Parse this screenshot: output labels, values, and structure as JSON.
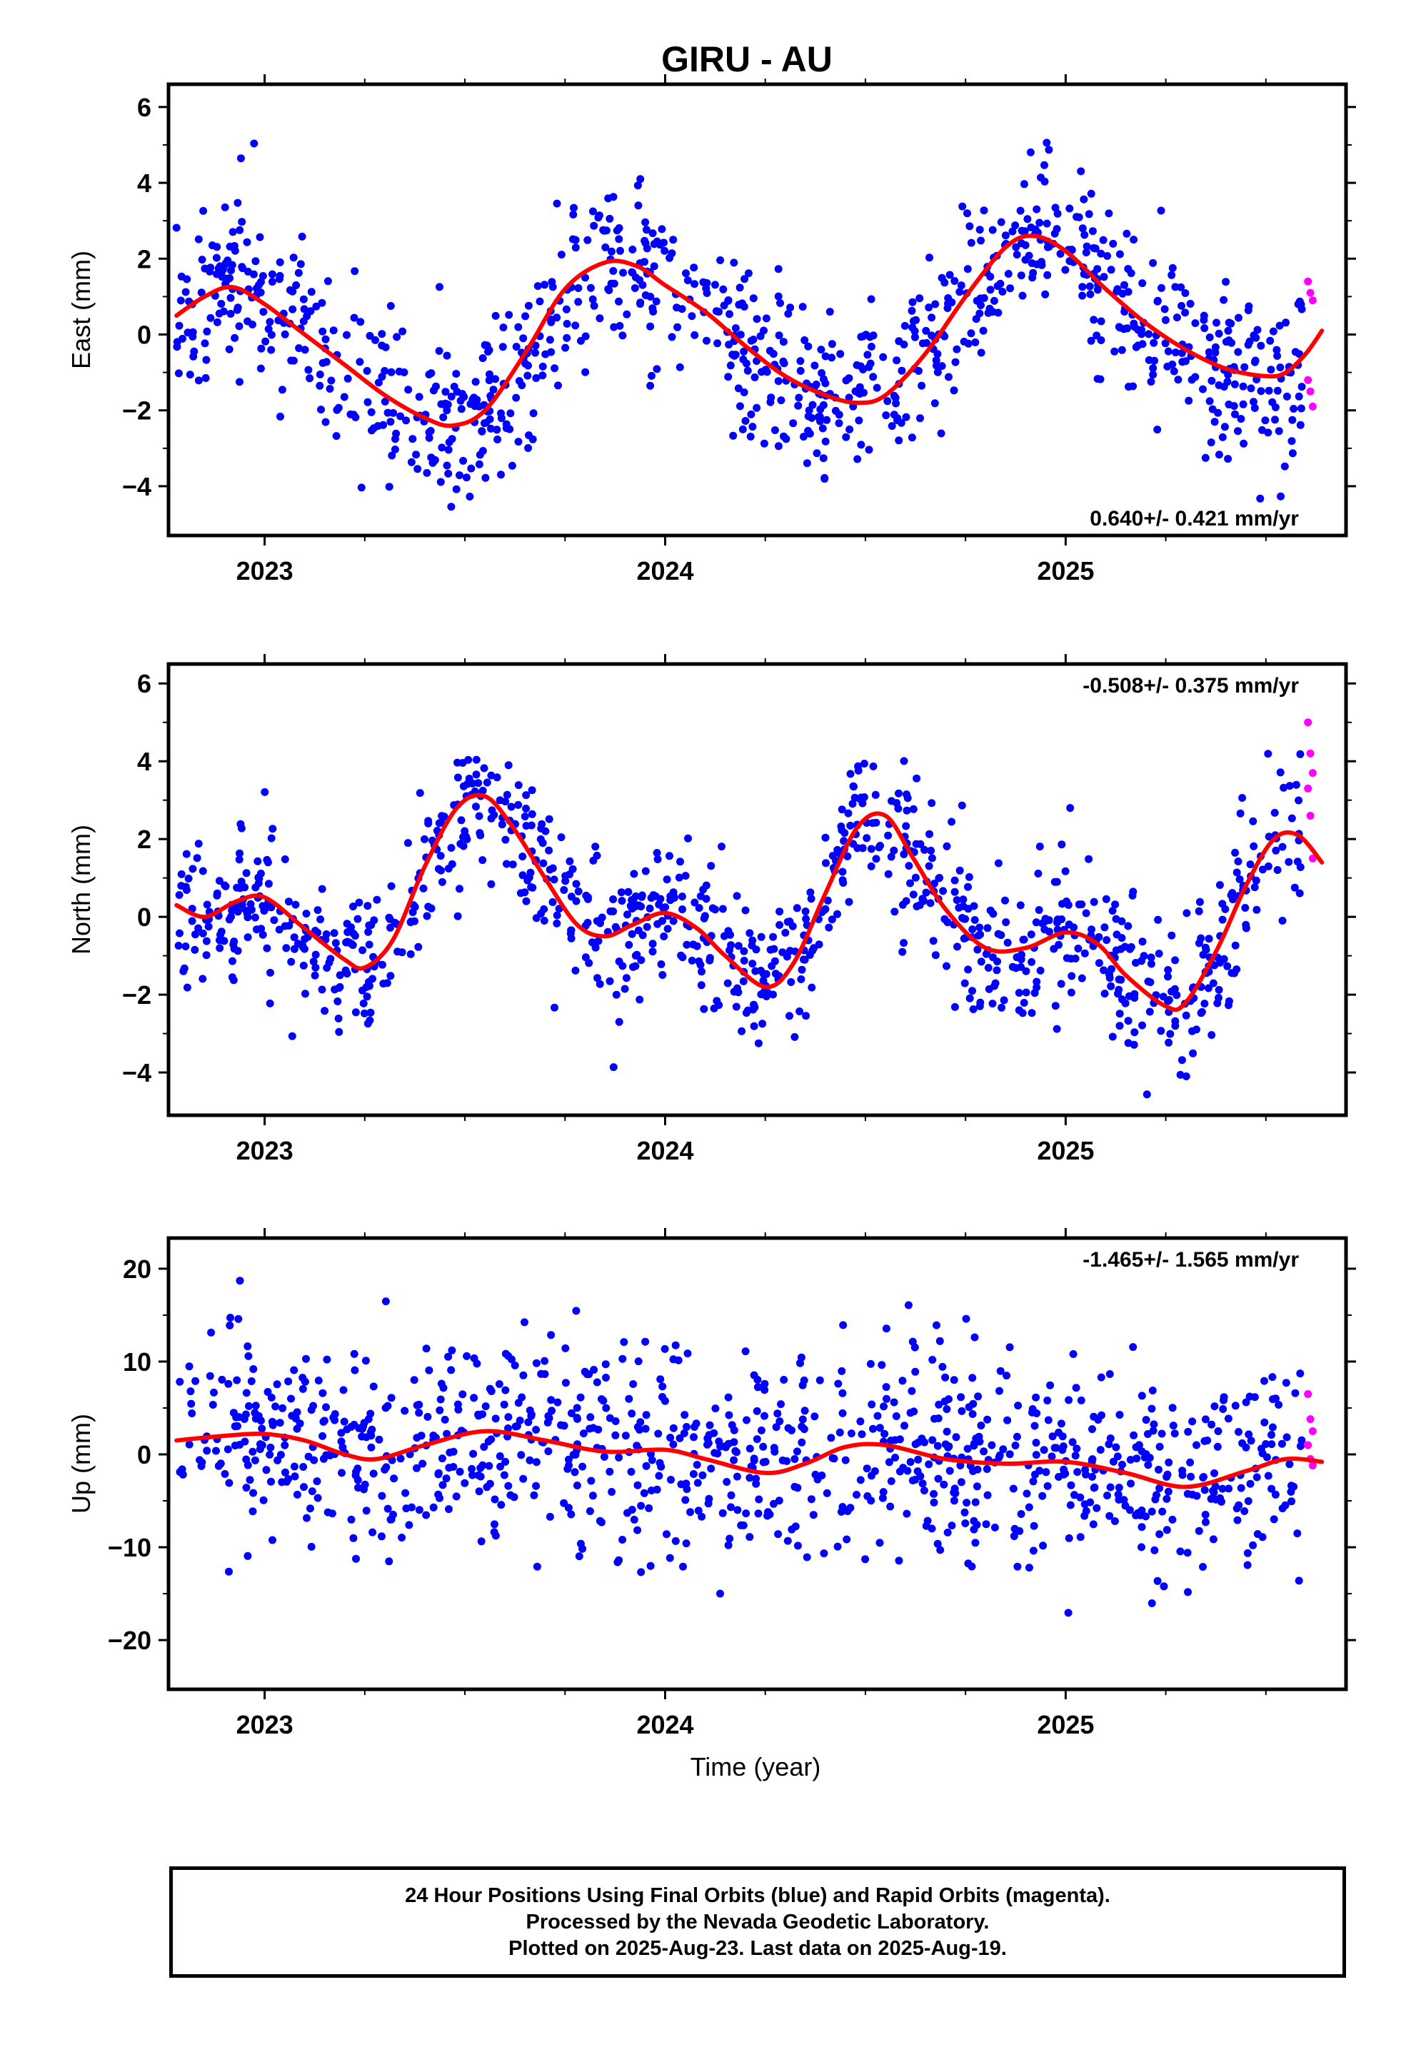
{
  "title": "GIRU - AU",
  "xlabel": "Time (year)",
  "colors": {
    "final": "#0000ff",
    "rapid": "#ff00ff",
    "fit": "#ff0000",
    "frame": "#000000"
  },
  "caption": {
    "line1": "24 Hour Positions Using Final Orbits (blue) and Rapid Orbits (magenta).",
    "line2": "Processed by the Nevada Geodetic Laboratory.",
    "line3": "Plotted on 2025-Aug-23. Last data on 2025-Aug-19."
  },
  "chart_data": [
    {
      "type": "scatter",
      "ylabel": "East (mm)",
      "rate": "0.640+/- 0.421 mm/yr",
      "rate_position": "bottom-right",
      "xlim": [
        2022.76,
        2025.7
      ],
      "ylim": [
        -5.3,
        6.6
      ],
      "x_ticks": [
        2023,
        2024,
        2025
      ],
      "y_ticks": [
        -4,
        -2,
        0,
        2,
        4,
        6
      ],
      "fit_curve": {
        "x": [
          2022.78,
          2022.85,
          2022.92,
          2023.0,
          2023.1,
          2023.2,
          2023.3,
          2023.4,
          2023.47,
          2023.55,
          2023.65,
          2023.75,
          2023.85,
          2023.93,
          2024.0,
          2024.1,
          2024.2,
          2024.3,
          2024.4,
          2024.48,
          2024.55,
          2024.65,
          2024.75,
          2024.85,
          2024.92,
          2025.0,
          2025.1,
          2025.2,
          2025.3,
          2025.4,
          2025.5,
          2025.55,
          2025.6,
          2025.64
        ],
        "y": [
          0.5,
          1.0,
          1.25,
          0.8,
          0.0,
          -0.8,
          -1.6,
          -2.2,
          -2.4,
          -2.0,
          -0.5,
          1.2,
          1.9,
          1.8,
          1.3,
          0.6,
          -0.3,
          -1.1,
          -1.6,
          -1.8,
          -1.6,
          -0.5,
          1.0,
          2.3,
          2.6,
          2.2,
          1.2,
          0.3,
          -0.4,
          -0.9,
          -1.1,
          -1.0,
          -0.5,
          0.1
        ]
      },
      "scatter_model": {
        "final_x_range": [
          2022.78,
          2025.59
        ],
        "final_count": 1000,
        "scatter_sd": 1.15,
        "seed": 11,
        "rapid": {
          "x_start": 2025.605,
          "x_step": 0.006,
          "values": [
            1.4,
            1.1,
            0.9,
            -1.2,
            -1.5,
            -1.9
          ]
        }
      }
    },
    {
      "type": "scatter",
      "ylabel": "North (mm)",
      "rate": "-0.508+/- 0.375 mm/yr",
      "rate_position": "top-right",
      "xlim": [
        2022.76,
        2025.7
      ],
      "ylim": [
        -5.1,
        6.5
      ],
      "x_ticks": [
        2023,
        2024,
        2025
      ],
      "y_ticks": [
        -4,
        -2,
        0,
        2,
        4,
        6
      ],
      "fit_curve": {
        "x": [
          2022.78,
          2022.85,
          2022.93,
          2023.0,
          2023.1,
          2023.2,
          2023.25,
          2023.32,
          2023.4,
          2023.48,
          2023.55,
          2023.62,
          2023.7,
          2023.78,
          2023.85,
          2023.92,
          2024.0,
          2024.08,
          2024.15,
          2024.25,
          2024.32,
          2024.4,
          2024.48,
          2024.55,
          2024.62,
          2024.7,
          2024.8,
          2024.9,
          2025.0,
          2025.08,
          2025.15,
          2025.25,
          2025.3,
          2025.38,
          2025.45,
          2025.52,
          2025.58,
          2025.64
        ],
        "y": [
          0.3,
          0.0,
          0.4,
          0.5,
          -0.3,
          -1.1,
          -1.3,
          -0.6,
          1.3,
          2.8,
          3.1,
          2.3,
          1.0,
          -0.2,
          -0.5,
          -0.2,
          0.1,
          -0.3,
          -1.0,
          -1.8,
          -1.2,
          0.6,
          2.3,
          2.6,
          1.5,
          0.2,
          -0.8,
          -0.8,
          -0.4,
          -0.7,
          -1.5,
          -2.3,
          -2.2,
          -0.8,
          0.8,
          2.0,
          2.1,
          1.4
        ]
      },
      "scatter_model": {
        "final_x_range": [
          2022.78,
          2025.59
        ],
        "final_count": 1000,
        "scatter_sd": 0.95,
        "seed": 23,
        "rapid": {
          "x_start": 2025.605,
          "x_step": 0.006,
          "values": [
            5.0,
            4.2,
            3.7,
            3.3,
            2.6,
            1.5
          ]
        }
      }
    },
    {
      "type": "scatter",
      "ylabel": "Up (mm)",
      "rate": "-1.465+/- 1.565 mm/yr",
      "rate_position": "top-right",
      "xlim": [
        2022.76,
        2025.7
      ],
      "ylim": [
        -25.3,
        23.3
      ],
      "x_ticks": [
        2023,
        2024,
        2025
      ],
      "y_ticks": [
        -20,
        -10,
        0,
        10,
        20
      ],
      "fit_curve": {
        "x": [
          2022.78,
          2022.9,
          2023.0,
          2023.1,
          2023.2,
          2023.28,
          2023.4,
          2023.55,
          2023.7,
          2023.85,
          2024.0,
          2024.1,
          2024.25,
          2024.35,
          2024.45,
          2024.55,
          2024.7,
          2024.85,
          2025.0,
          2025.15,
          2025.3,
          2025.45,
          2025.55,
          2025.64
        ],
        "y": [
          1.5,
          2.0,
          2.2,
          1.5,
          0.0,
          -0.5,
          1.0,
          2.5,
          1.5,
          0.3,
          0.5,
          -0.5,
          -2.0,
          -1.0,
          0.8,
          1.0,
          -0.5,
          -1.0,
          -0.8,
          -2.0,
          -3.5,
          -1.8,
          -0.5,
          -0.8
        ]
      },
      "scatter_model": {
        "final_x_range": [
          2022.78,
          2025.59
        ],
        "final_count": 1000,
        "scatter_sd": 5.5,
        "seed": 37,
        "rapid": {
          "x_start": 2025.605,
          "x_step": 0.006,
          "values": [
            6.5,
            3.8,
            2.5,
            1.0,
            -0.5,
            -1.2
          ]
        }
      }
    }
  ]
}
